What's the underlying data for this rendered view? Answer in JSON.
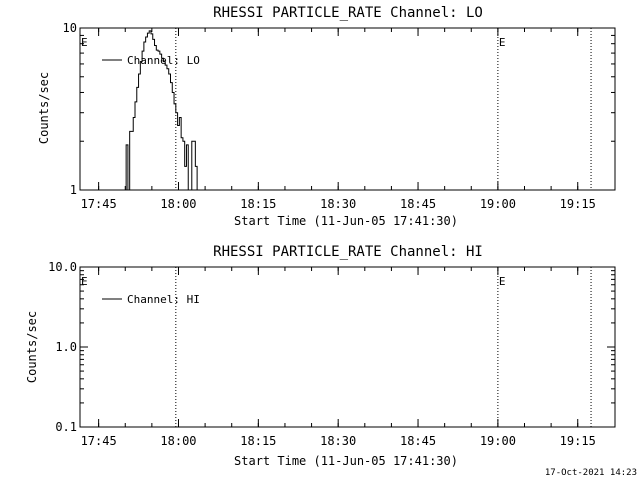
{
  "chart_data": [
    {
      "type": "line",
      "title": "RHESSI PARTICLE_RATE Channel: LO",
      "xlabel": "Start Time (11-Jun-05 17:41:30)",
      "ylabel": "Counts/sec",
      "y_scale": "log",
      "ylim": [
        1,
        10
      ],
      "xlim": [
        "17:41:30",
        "19:22:00"
      ],
      "x_tick_labels": [
        "17:45",
        "18:00",
        "18:15",
        "18:30",
        "18:45",
        "19:00",
        "19:15"
      ],
      "y_tick_labels": [
        "1",
        "10"
      ],
      "legend": [
        "Channel: LO"
      ],
      "legend_position": "top-left",
      "event_markers": [
        {
          "time": "17:41:30",
          "label": "E"
        },
        {
          "time": "17:59:30",
          "label": ""
        },
        {
          "time": "19:00:00",
          "label": "E"
        },
        {
          "time": "19:17:30",
          "label": ""
        }
      ],
      "series": [
        {
          "name": "Channel: LO",
          "x": [
            "17:50:00",
            "17:50:20",
            "17:50:40",
            "17:51:00",
            "17:51:20",
            "17:51:40",
            "17:52:00",
            "17:52:20",
            "17:52:40",
            "17:53:00",
            "17:53:20",
            "17:53:40",
            "17:54:00",
            "17:54:20",
            "17:54:40",
            "17:55:00",
            "17:55:20",
            "17:55:40",
            "17:56:00",
            "17:56:20",
            "17:56:40",
            "17:57:00",
            "17:57:20",
            "17:57:40",
            "17:58:00",
            "17:58:20",
            "17:58:40",
            "17:59:00",
            "17:59:20",
            "17:59:40",
            "18:00:00",
            "18:00:20",
            "18:00:40",
            "18:01:00",
            "18:01:20",
            "18:01:40",
            "18:02:00",
            "18:02:20",
            "18:02:40",
            "18:03:00",
            "18:03:20",
            "18:03:40",
            "18:04:00"
          ],
          "values": [
            1,
            1.9,
            1,
            2.3,
            2.3,
            2.8,
            3.5,
            4.3,
            5.2,
            6.2,
            7.2,
            8.2,
            8.8,
            9.3,
            9.6,
            9.2,
            8.5,
            7.8,
            7.3,
            7.2,
            6.9,
            6.5,
            6.2,
            5.9,
            5.6,
            5.2,
            4.6,
            4.0,
            3.4,
            3.0,
            2.5,
            2.8,
            2.1,
            2.0,
            1.4,
            1.9,
            1.0,
            1.0,
            2.0,
            2.0,
            1.4,
            1,
            1
          ]
        }
      ]
    },
    {
      "type": "line",
      "title": "RHESSI PARTICLE_RATE Channel: HI",
      "xlabel": "Start Time (11-Jun-05 17:41:30)",
      "ylabel": "Counts/sec",
      "y_scale": "log",
      "ylim": [
        0.1,
        10
      ],
      "xlim": [
        "17:41:30",
        "19:22:00"
      ],
      "x_tick_labels": [
        "17:45",
        "18:00",
        "18:15",
        "18:30",
        "18:45",
        "19:00",
        "19:15"
      ],
      "y_tick_labels": [
        "0.1",
        "1.0",
        "10.0"
      ],
      "legend": [
        "Channel: HI"
      ],
      "legend_position": "top-left",
      "event_markers": [
        {
          "time": "17:41:30",
          "label": "E"
        },
        {
          "time": "17:59:30",
          "label": ""
        },
        {
          "time": "19:00:00",
          "label": "E"
        },
        {
          "time": "19:17:30",
          "label": ""
        }
      ],
      "series": [
        {
          "name": "Channel: HI",
          "x": [],
          "values": []
        }
      ]
    }
  ],
  "footer": {
    "timestamp": "17-Oct-2021 14:23"
  }
}
